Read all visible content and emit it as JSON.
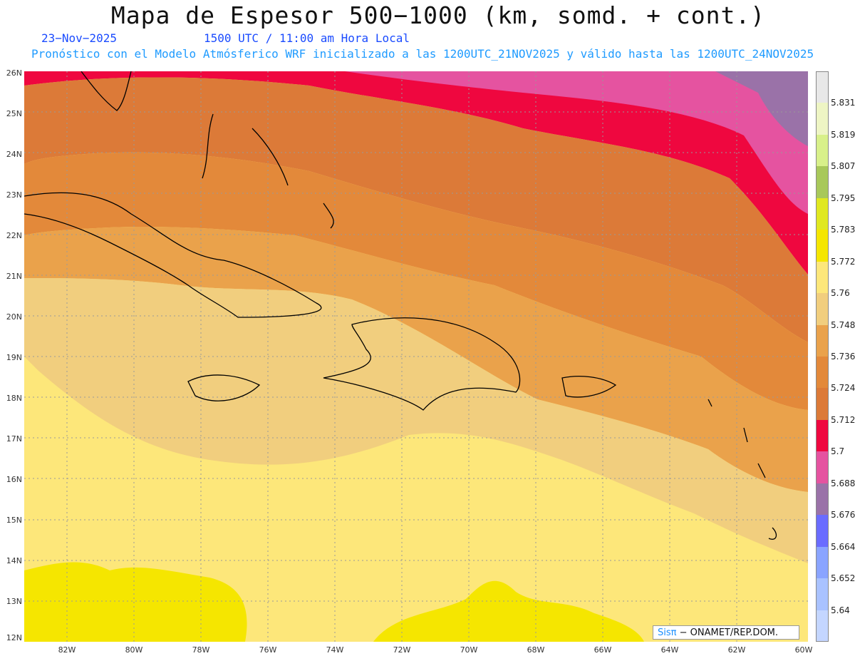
{
  "header": {
    "title": "Mapa de Espesor 500−1000 (km, somd. + cont.)",
    "date": "23−Nov−2025",
    "time": "1500 UTC / 11:00 am Hora Local",
    "subtitle": "Pronóstico con el Modelo Atmósferico WRF inicializado a las 1200UTC_21NOV2025 y válido hasta las  1200UTC_24NOV2025"
  },
  "axes": {
    "lat_labels": [
      "26N",
      "25N",
      "24N",
      "23N",
      "22N",
      "21N",
      "20N",
      "19N",
      "18N",
      "17N",
      "16N",
      "15N",
      "14N",
      "13N",
      "12N"
    ],
    "lon_labels": [
      "82W",
      "80W",
      "78W",
      "76W",
      "74W",
      "72W",
      "70W",
      "68W",
      "66W",
      "64W",
      "62W",
      "60W"
    ]
  },
  "colorbar": {
    "labels": [
      "5.831",
      "5.819",
      "5.807",
      "5.795",
      "5.783",
      "5.772",
      "5.76",
      "5.748",
      "5.736",
      "5.724",
      "5.712",
      "5.7",
      "5.688",
      "5.676",
      "5.664",
      "5.652",
      "5.64"
    ],
    "colors": [
      "#e8e8e8",
      "#eef5c4",
      "#d8f08a",
      "#a8c85a",
      "#e0e820",
      "#f5e600",
      "#fde77a",
      "#f1ce7e",
      "#eaa24b",
      "#e3893a",
      "#dc7a38",
      "#ef073f",
      "#e553a0",
      "#9a72a8",
      "#6a6cff",
      "#8aa4ff",
      "#a9c2ff",
      "#c4d6ff"
    ]
  },
  "credit": {
    "brand": "Sisπ",
    "text": "− ONAMET/REP.DOM."
  }
}
